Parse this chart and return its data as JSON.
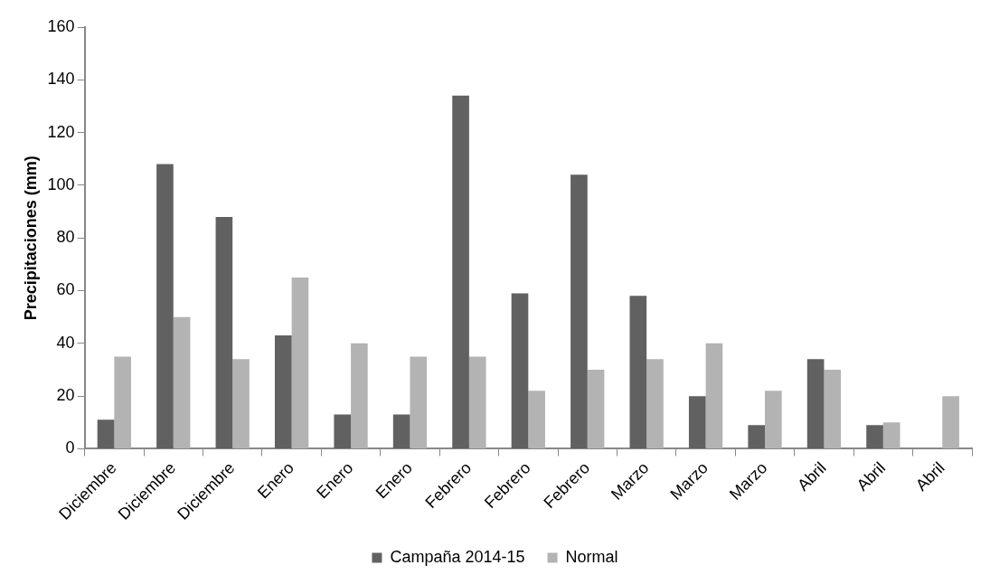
{
  "chart_data": {
    "type": "bar",
    "ylabel": "Precipitaciones (mm)",
    "categories": [
      "Diciembre",
      "Diciembre",
      "Diciembre",
      "Enero",
      "Enero",
      "Enero",
      "Febrero",
      "Febrero",
      "Febrero",
      "Marzo",
      "Marzo",
      "Marzo",
      "Abril",
      "Abril",
      "Abril"
    ],
    "series": [
      {
        "name": "Campaña 2014-15",
        "color": "#616161",
        "values": [
          11,
          108,
          88,
          43,
          13,
          13,
          134,
          59,
          104,
          58,
          20,
          9,
          34,
          9,
          null
        ]
      },
      {
        "name": "Normal",
        "color": "#b3b3b3",
        "values": [
          35,
          50,
          34,
          65,
          40,
          35,
          35,
          22,
          30,
          34,
          40,
          22,
          30,
          10,
          20
        ]
      }
    ],
    "ylim": [
      0,
      160
    ],
    "yticks": [
      0,
      20,
      40,
      60,
      80,
      100,
      120,
      140,
      160
    ],
    "grid": false,
    "legend": "bottom"
  }
}
